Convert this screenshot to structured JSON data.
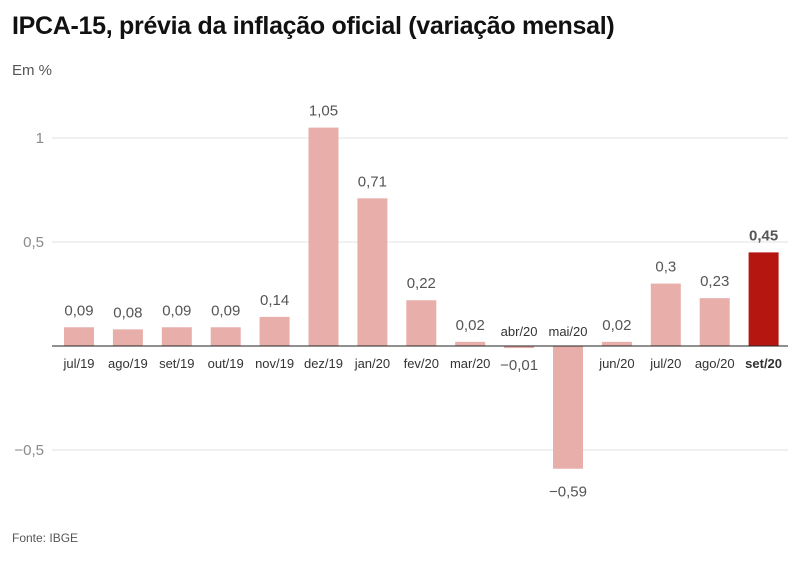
{
  "title": "IPCA-15, prévia da inflação oficial (variação mensal)",
  "subtitle": "Em %",
  "source": "Fonte: IBGE",
  "colors": {
    "bar": "#e8aeaa",
    "highlight": "#b5160f"
  },
  "chart_data": {
    "type": "bar",
    "title": "IPCA-15, prévia da inflação oficial (variação mensal)",
    "ylabel": "Em %",
    "xlabel": "",
    "ylim": [
      -0.6,
      1.1
    ],
    "yticks": [
      1,
      0.5,
      -0.5
    ],
    "ytick_labels": [
      "1",
      "0,5",
      "−0,5"
    ],
    "grid": true,
    "categories": [
      "jul/19",
      "ago/19",
      "set/19",
      "out/19",
      "nov/19",
      "dez/19",
      "jan/20",
      "fev/20",
      "mar/20",
      "abr/20",
      "mai/20",
      "jun/20",
      "jul/20",
      "ago/20",
      "set/20"
    ],
    "values": [
      0.09,
      0.08,
      0.09,
      0.09,
      0.14,
      1.05,
      0.71,
      0.22,
      0.02,
      -0.01,
      -0.59,
      0.02,
      0.3,
      0.23,
      0.45
    ],
    "value_labels": [
      "0,09",
      "0,08",
      "0,09",
      "0,09",
      "0,14",
      "1,05",
      "0,71",
      "0,22",
      "0,02",
      "−0,01",
      "−0,59",
      "0,02",
      "0,3",
      "0,23",
      "0,45"
    ],
    "highlight_category": "set/20"
  }
}
